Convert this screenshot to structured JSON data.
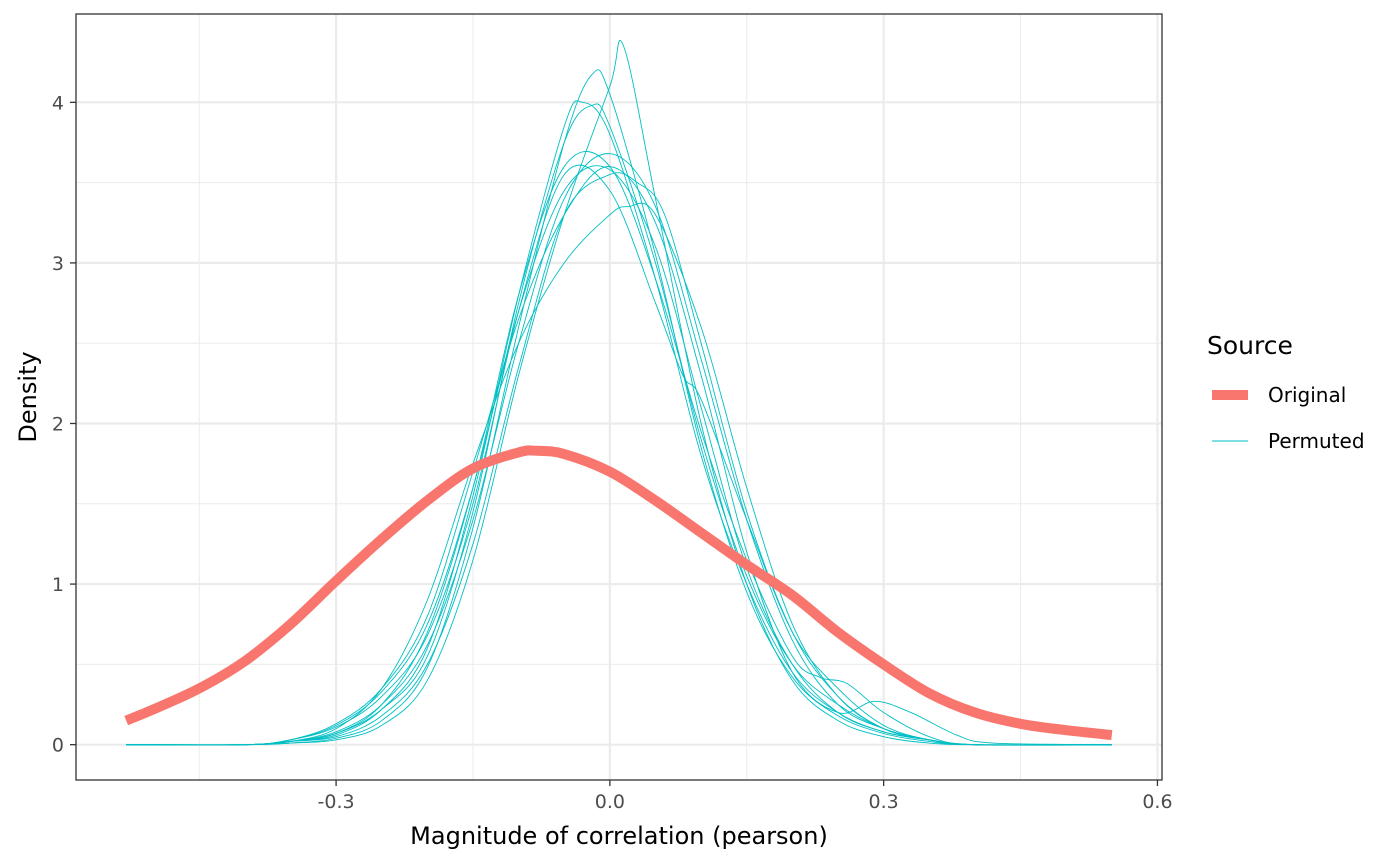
{
  "chart_data": {
    "type": "line",
    "title": "",
    "xlabel": "Magnitude of correlation (pearson)",
    "ylabel": "Density",
    "xlim": [
      -0.585,
      0.605
    ],
    "ylim": [
      -0.22,
      4.55
    ],
    "x_ticks": [
      -0.3,
      0.0,
      0.3,
      0.6
    ],
    "x_tick_labels": [
      "-0.3",
      "0.0",
      "0.3",
      "0.6"
    ],
    "x_minor": [
      -0.45,
      -0.15,
      0.15,
      0.45
    ],
    "y_ticks": [
      0,
      1,
      2,
      3,
      4
    ],
    "y_tick_labels": [
      "0",
      "1",
      "2",
      "3",
      "4"
    ],
    "y_minor": [
      0.5,
      1.5,
      2.5,
      3.5
    ],
    "grid": true,
    "legend": {
      "title": "Source",
      "position": "right",
      "entries": [
        {
          "label": "Original",
          "color": "#F8766D"
        },
        {
          "label": "Permuted",
          "color": "#00BFC4"
        }
      ]
    },
    "series": [
      {
        "name": "Original",
        "color": "#F8766D",
        "x": [
          -0.53,
          -0.5,
          -0.45,
          -0.4,
          -0.35,
          -0.3,
          -0.25,
          -0.2,
          -0.15,
          -0.1,
          -0.08,
          -0.05,
          0.0,
          0.05,
          0.1,
          0.15,
          0.2,
          0.25,
          0.3,
          0.35,
          0.4,
          0.45,
          0.5,
          0.55
        ],
        "y": [
          0.15,
          0.22,
          0.35,
          0.52,
          0.75,
          1.02,
          1.28,
          1.52,
          1.72,
          1.82,
          1.83,
          1.81,
          1.7,
          1.52,
          1.32,
          1.12,
          0.93,
          0.7,
          0.5,
          0.32,
          0.2,
          0.13,
          0.09,
          0.06
        ]
      },
      {
        "name": "Permuted",
        "color": "#00BFC4",
        "x": [
          -0.53,
          -0.4,
          -0.35,
          -0.3,
          -0.25,
          -0.2,
          -0.15,
          -0.1,
          -0.05,
          -0.03,
          0.0,
          0.05,
          0.1,
          0.15,
          0.2,
          0.25,
          0.3,
          0.35,
          0.4,
          0.55
        ],
        "y": [
          0.0,
          0.0,
          0.02,
          0.06,
          0.22,
          0.6,
          1.55,
          2.8,
          3.85,
          4.0,
          3.8,
          2.9,
          1.8,
          1.0,
          0.45,
          0.2,
          0.08,
          0.03,
          0.0,
          0.0
        ]
      },
      {
        "name": "Permuted",
        "color": "#00BFC4",
        "x": [
          -0.53,
          -0.4,
          -0.35,
          -0.3,
          -0.25,
          -0.2,
          -0.15,
          -0.1,
          -0.05,
          -0.02,
          0.0,
          0.05,
          0.1,
          0.15,
          0.2,
          0.25,
          0.3,
          0.35,
          0.4,
          0.55
        ],
        "y": [
          0.0,
          0.0,
          0.01,
          0.04,
          0.15,
          0.48,
          1.35,
          2.6,
          3.75,
          4.17,
          4.05,
          3.05,
          1.85,
          0.95,
          0.42,
          0.18,
          0.07,
          0.02,
          0.0,
          0.0
        ]
      },
      {
        "name": "Permuted",
        "color": "#00BFC4",
        "x": [
          -0.53,
          -0.4,
          -0.35,
          -0.3,
          -0.25,
          -0.2,
          -0.15,
          -0.1,
          -0.05,
          0.0,
          0.015,
          0.05,
          0.1,
          0.15,
          0.2,
          0.25,
          0.3,
          0.35,
          0.4,
          0.55
        ],
        "y": [
          0.0,
          0.0,
          0.01,
          0.03,
          0.12,
          0.4,
          1.15,
          2.3,
          3.3,
          4.1,
          4.35,
          3.4,
          2.0,
          1.0,
          0.4,
          0.15,
          0.05,
          0.01,
          0.0,
          0.0
        ]
      },
      {
        "name": "Permuted",
        "color": "#00BFC4",
        "x": [
          -0.53,
          -0.4,
          -0.35,
          -0.3,
          -0.25,
          -0.2,
          -0.15,
          -0.1,
          -0.05,
          0.0,
          0.05,
          0.1,
          0.15,
          0.2,
          0.25,
          0.3,
          0.35,
          0.4,
          0.55
        ],
        "y": [
          0.0,
          0.0,
          0.03,
          0.12,
          0.33,
          0.75,
          1.6,
          2.7,
          3.45,
          3.58,
          3.1,
          2.1,
          1.1,
          0.5,
          0.2,
          0.08,
          0.03,
          0.0,
          0.0
        ]
      },
      {
        "name": "Permuted",
        "color": "#00BFC4",
        "x": [
          -0.53,
          -0.4,
          -0.35,
          -0.3,
          -0.25,
          -0.2,
          -0.15,
          -0.1,
          -0.05,
          0.0,
          0.05,
          0.1,
          0.15,
          0.2,
          0.25,
          0.3,
          0.35,
          0.4,
          0.55
        ],
        "y": [
          0.0,
          0.0,
          0.02,
          0.08,
          0.25,
          0.62,
          1.4,
          2.5,
          3.4,
          3.68,
          3.35,
          2.4,
          1.4,
          0.65,
          0.25,
          0.1,
          0.03,
          0.0,
          0.0
        ]
      },
      {
        "name": "Permuted",
        "color": "#00BFC4",
        "x": [
          -0.53,
          -0.4,
          -0.35,
          -0.3,
          -0.25,
          -0.2,
          -0.15,
          -0.1,
          -0.05,
          0.0,
          0.02,
          0.05,
          0.1,
          0.15,
          0.2,
          0.25,
          0.3,
          0.35,
          0.4,
          0.55
        ],
        "y": [
          0.0,
          0.0,
          0.02,
          0.1,
          0.35,
          0.9,
          1.75,
          2.5,
          3.0,
          3.3,
          3.35,
          3.3,
          2.6,
          1.6,
          0.75,
          0.3,
          0.1,
          0.03,
          0.0,
          0.0
        ]
      },
      {
        "name": "Permuted",
        "color": "#00BFC4",
        "x": [
          -0.53,
          -0.4,
          -0.35,
          -0.3,
          -0.25,
          -0.2,
          -0.15,
          -0.1,
          -0.05,
          0.0,
          0.03,
          0.06,
          0.1,
          0.15,
          0.2,
          0.25,
          0.3,
          0.35,
          0.4,
          0.55
        ],
        "y": [
          0.0,
          0.0,
          0.02,
          0.05,
          0.18,
          0.5,
          1.25,
          2.35,
          3.3,
          3.55,
          3.5,
          3.3,
          2.5,
          1.45,
          0.7,
          0.3,
          0.1,
          0.03,
          0.0,
          0.0
        ]
      },
      {
        "name": "Permuted",
        "color": "#00BFC4",
        "x": [
          -0.53,
          -0.4,
          -0.35,
          -0.3,
          -0.25,
          -0.2,
          -0.15,
          -0.1,
          -0.05,
          0.0,
          0.05,
          0.08,
          0.1,
          0.15,
          0.2,
          0.25,
          0.3,
          0.35,
          0.4,
          0.55
        ],
        "y": [
          0.0,
          0.0,
          0.03,
          0.11,
          0.3,
          0.68,
          1.5,
          2.7,
          3.55,
          3.45,
          2.75,
          2.3,
          2.15,
          1.4,
          0.7,
          0.35,
          0.12,
          0.03,
          0.0,
          0.0
        ]
      },
      {
        "name": "Permuted",
        "color": "#00BFC4",
        "x": [
          -0.53,
          -0.4,
          -0.35,
          -0.3,
          -0.25,
          -0.2,
          -0.15,
          -0.1,
          -0.05,
          -0.02,
          0.0,
          0.05,
          0.1,
          0.15,
          0.2,
          0.25,
          0.3,
          0.35,
          0.4,
          0.55
        ],
        "y": [
          0.0,
          0.0,
          0.02,
          0.07,
          0.22,
          0.55,
          1.45,
          2.75,
          3.75,
          3.98,
          3.85,
          3.0,
          1.9,
          1.05,
          0.5,
          0.25,
          0.1,
          0.03,
          0.0,
          0.0
        ]
      },
      {
        "name": "Permuted",
        "color": "#00BFC4",
        "x": [
          -0.53,
          -0.4,
          -0.35,
          -0.3,
          -0.25,
          -0.2,
          -0.15,
          -0.1,
          -0.05,
          0.0,
          0.05,
          0.1,
          0.15,
          0.2,
          0.25,
          0.29,
          0.33,
          0.38,
          0.42,
          0.55
        ],
        "y": [
          0.0,
          0.0,
          0.03,
          0.13,
          0.35,
          0.8,
          1.7,
          2.65,
          3.3,
          3.6,
          3.25,
          2.3,
          1.2,
          0.45,
          0.2,
          0.27,
          0.2,
          0.06,
          0.01,
          0.0
        ]
      },
      {
        "name": "Permuted",
        "color": "#00BFC4",
        "x": [
          -0.53,
          -0.4,
          -0.35,
          -0.3,
          -0.25,
          -0.2,
          -0.15,
          -0.1,
          -0.05,
          0.0,
          0.05,
          0.1,
          0.15,
          0.2,
          0.23,
          0.26,
          0.3,
          0.35,
          0.4,
          0.55
        ],
        "y": [
          0.0,
          0.0,
          0.02,
          0.07,
          0.25,
          0.7,
          1.6,
          2.8,
          3.6,
          3.6,
          2.9,
          1.95,
          1.15,
          0.55,
          0.42,
          0.38,
          0.2,
          0.05,
          0.0,
          0.0
        ]
      }
    ]
  }
}
